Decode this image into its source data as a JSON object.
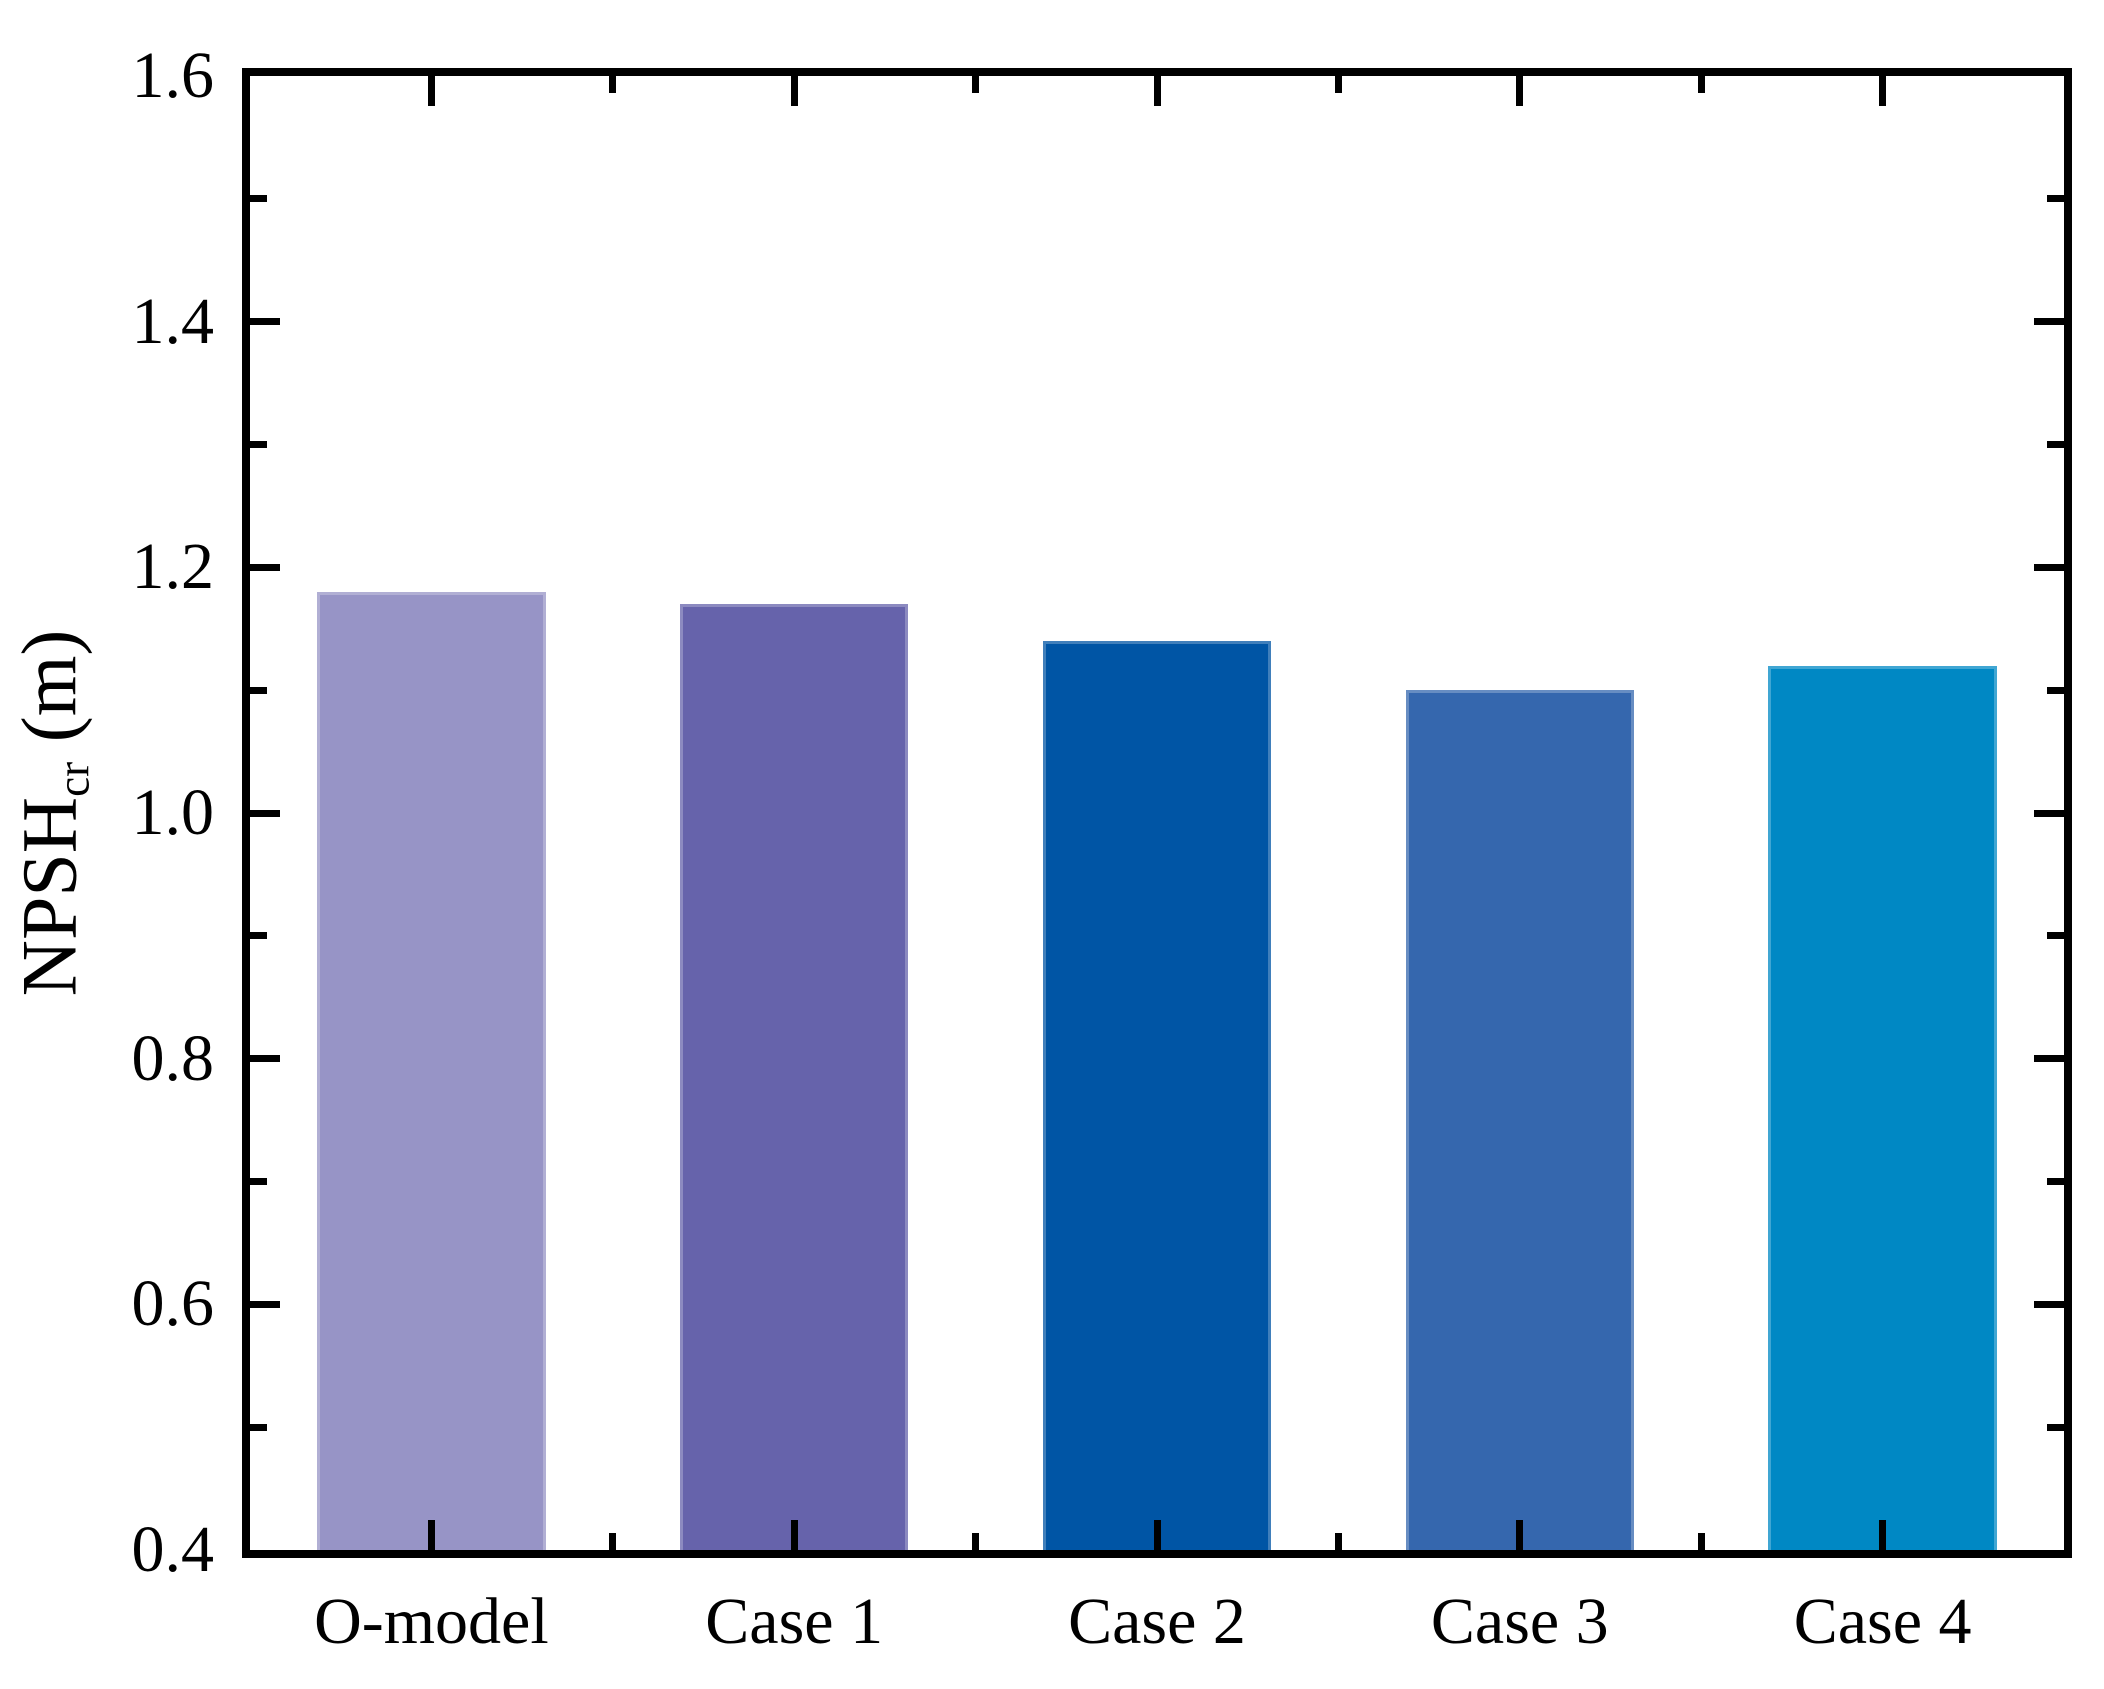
{
  "chart_data": {
    "type": "bar",
    "categories": [
      "O-model",
      "Case 1",
      "Case 2",
      "Case 3",
      "Case 4"
    ],
    "values": [
      1.18,
      1.17,
      1.14,
      1.1,
      1.12
    ],
    "bar_colors": [
      "#9794c6",
      "#6663ab",
      "#0055a5",
      "#3567ae",
      "#0088c4"
    ],
    "title": "",
    "xlabel": "",
    "ylabel": "NPSHcr (m)",
    "ylabel_main": "NPSH",
    "ylabel_sub": "cr",
    "ylabel_unit": " (m)",
    "ylim": [
      0.4,
      1.6
    ],
    "yticks": [
      "0.4",
      "0.6",
      "0.8",
      "1.0",
      "1.2",
      "1.4",
      "1.6"
    ],
    "ytick_step": 0.2,
    "yminor_step": 0.1,
    "grid": false,
    "legend": "none",
    "axis_color": "#000000",
    "text_color": "#000000",
    "background": "#ffffff"
  }
}
